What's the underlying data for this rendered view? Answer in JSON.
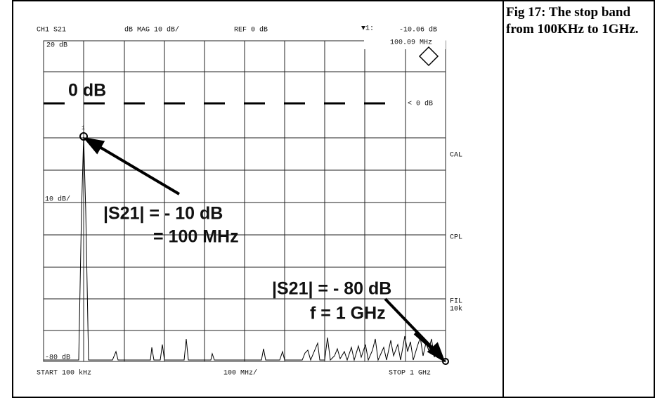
{
  "header": {
    "channel": "CH1 S21",
    "format": "dB MAG 10 dB/",
    "reference": "REF 0 dB",
    "marker_id": "▼1:",
    "marker_value": "-10.06 dB",
    "marker_freq": "100.09 MHz"
  },
  "screen": {
    "top_label": "20 dB",
    "ref_label": "< 0 dB",
    "scale_label": "10 dB/",
    "bottom_label": "-80 dB",
    "cal": "CAL",
    "cpl": "CPL",
    "fil": "FIL",
    "fil_bw": "10k",
    "start": "START  100 kHz",
    "span": "100 MHz/",
    "stop": "STOP 1 GHz",
    "marker_number": "1"
  },
  "annotations": {
    "zero": "0 dB",
    "peak_line1": "|S21| = - 10 dB",
    "peak_line2": "= 100 MHz",
    "stop_line1": "|S21| = - 80 dB",
    "stop_line2": "f = 1 GHz"
  },
  "caption": "Fig 17: The stop band from 100KHz to 1GHz."
}
